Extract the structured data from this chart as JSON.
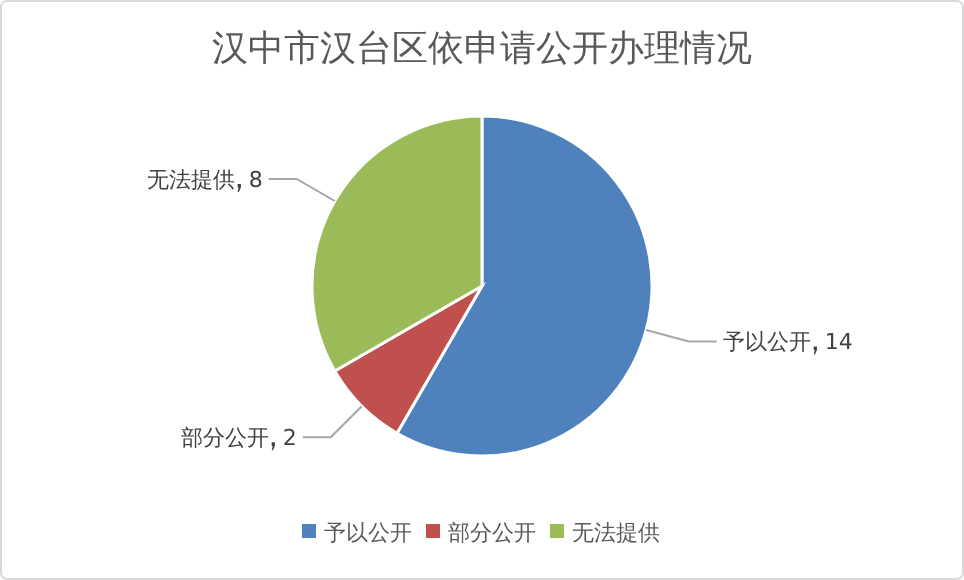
{
  "chart_data": {
    "type": "pie",
    "title": "汉中市汉台区依申请公开办理情况",
    "categories": [
      "予以公开",
      "部分公开",
      "无法提供"
    ],
    "values": [
      14,
      2,
      8
    ],
    "colors": [
      "#4f81bd",
      "#c0504d",
      "#9bbb59"
    ],
    "data_labels": true,
    "legend": "bottom"
  }
}
